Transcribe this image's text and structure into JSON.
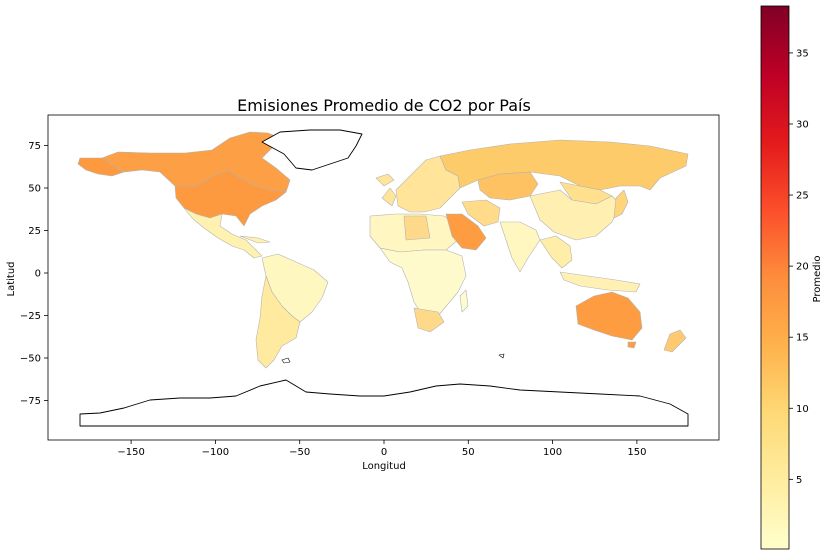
{
  "map": {
    "title": "Emisiones Promedio de CO2 por País",
    "xlabel": "Longitud",
    "ylabel": "Latitud",
    "x_ticks": [
      "−150",
      "−100",
      "−50",
      "0",
      "50",
      "100",
      "150"
    ],
    "y_ticks": [
      "75",
      "50",
      "25",
      "0",
      "−25",
      "−50",
      "−75"
    ],
    "colormap": "YlOrRd",
    "country_border_color": "#b0b0b0",
    "missing_data_style": "outlined, white fill (Greenland, Antarctica)"
  },
  "colorbar": {
    "label": "Promedio",
    "ticks": [
      "5",
      "10",
      "15",
      "20",
      "25",
      "30",
      "35"
    ],
    "colors": [
      "#ffffcc",
      "#ffeda0",
      "#fed976",
      "#feb24c",
      "#fd8d3c",
      "#fc4e2a",
      "#e31a1c",
      "#bd0026",
      "#800026"
    ]
  },
  "chart_data": {
    "type": "heatmap",
    "title": "Emisiones Promedio de CO2 por País",
    "xlabel": "Longitud",
    "ylabel": "Latitud",
    "xlim": [
      -195,
      200
    ],
    "ylim": [
      -98,
      92
    ],
    "value_range": [
      0.1,
      38.3
    ],
    "colorbar_label": "Promedio",
    "regions": [
      {
        "name": "United States",
        "value": 15.5
      },
      {
        "name": "Canada",
        "value": 15.0
      },
      {
        "name": "Australia",
        "value": 15.5
      },
      {
        "name": "Saudi Arabia",
        "value": 16.0
      },
      {
        "name": "Russia",
        "value": 10.5
      },
      {
        "name": "Kazakhstan",
        "value": 11.5
      },
      {
        "name": "Libya",
        "value": 8.0
      },
      {
        "name": "South Africa",
        "value": 8.0
      },
      {
        "name": "Mongolia",
        "value": 6.0
      },
      {
        "name": "Iran",
        "value": 7.5
      },
      {
        "name": "China",
        "value": 5.0
      },
      {
        "name": "Japan",
        "value": 9.0
      },
      {
        "name": "Europe",
        "value": 7.0
      },
      {
        "name": "Argentina",
        "value": 4.0
      },
      {
        "name": "Chile",
        "value": 4.0
      },
      {
        "name": "Mexico",
        "value": 4.0
      },
      {
        "name": "New Zealand",
        "value": 8.0
      },
      {
        "name": "Brazil",
        "value": 2.0
      },
      {
        "name": "India",
        "value": 1.5
      },
      {
        "name": "Africa (most)",
        "value": 0.5
      },
      {
        "name": "Southeast Asia",
        "value": 2.5
      },
      {
        "name": "Greenland",
        "value": null
      },
      {
        "name": "Antarctica",
        "value": null
      }
    ]
  }
}
